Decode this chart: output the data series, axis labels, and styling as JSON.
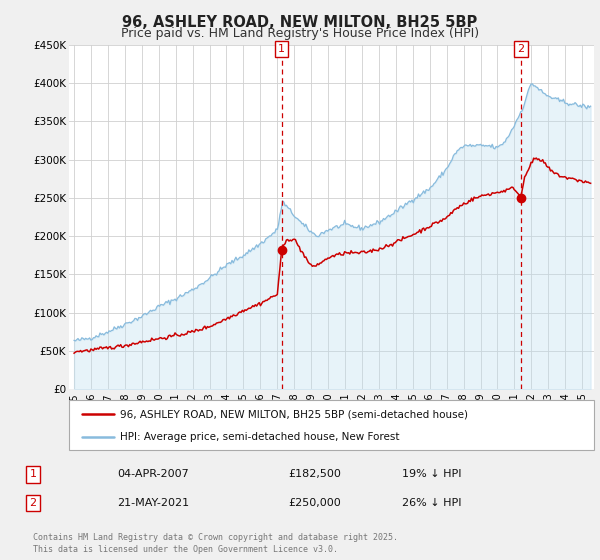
{
  "title": "96, ASHLEY ROAD, NEW MILTON, BH25 5BP",
  "subtitle": "Price paid vs. HM Land Registry's House Price Index (HPI)",
  "ylim": [
    0,
    450000
  ],
  "xlim_start": 1994.7,
  "xlim_end": 2025.7,
  "yticks": [
    0,
    50000,
    100000,
    150000,
    200000,
    250000,
    300000,
    350000,
    400000,
    450000
  ],
  "ytick_labels": [
    "£0",
    "£50K",
    "£100K",
    "£150K",
    "£200K",
    "£250K",
    "£300K",
    "£350K",
    "£400K",
    "£450K"
  ],
  "xticks": [
    1995,
    1996,
    1997,
    1998,
    1999,
    2000,
    2001,
    2002,
    2003,
    2004,
    2005,
    2006,
    2007,
    2008,
    2009,
    2010,
    2011,
    2012,
    2013,
    2014,
    2015,
    2016,
    2017,
    2018,
    2019,
    2020,
    2021,
    2022,
    2023,
    2024,
    2025
  ],
  "bg_color": "#f0f0f0",
  "plot_bg_color": "#ffffff",
  "grid_color": "#d0d0d0",
  "hpi_color": "#88bbdd",
  "hpi_fill_color": "#bbddf0",
  "price_color": "#cc0000",
  "marker1_date": 2007.26,
  "marker1_price": 182500,
  "marker2_date": 2021.38,
  "marker2_price": 250000,
  "vline_color": "#cc0000",
  "legend_label_red": "96, ASHLEY ROAD, NEW MILTON, BH25 5BP (semi-detached house)",
  "legend_label_blue": "HPI: Average price, semi-detached house, New Forest",
  "table_row1": [
    "1",
    "04-APR-2007",
    "£182,500",
    "19% ↓ HPI"
  ],
  "table_row2": [
    "2",
    "21-MAY-2021",
    "£250,000",
    "26% ↓ HPI"
  ],
  "footer_text": "Contains HM Land Registry data © Crown copyright and database right 2025.\nThis data is licensed under the Open Government Licence v3.0.",
  "title_fontsize": 10.5,
  "subtitle_fontsize": 9
}
